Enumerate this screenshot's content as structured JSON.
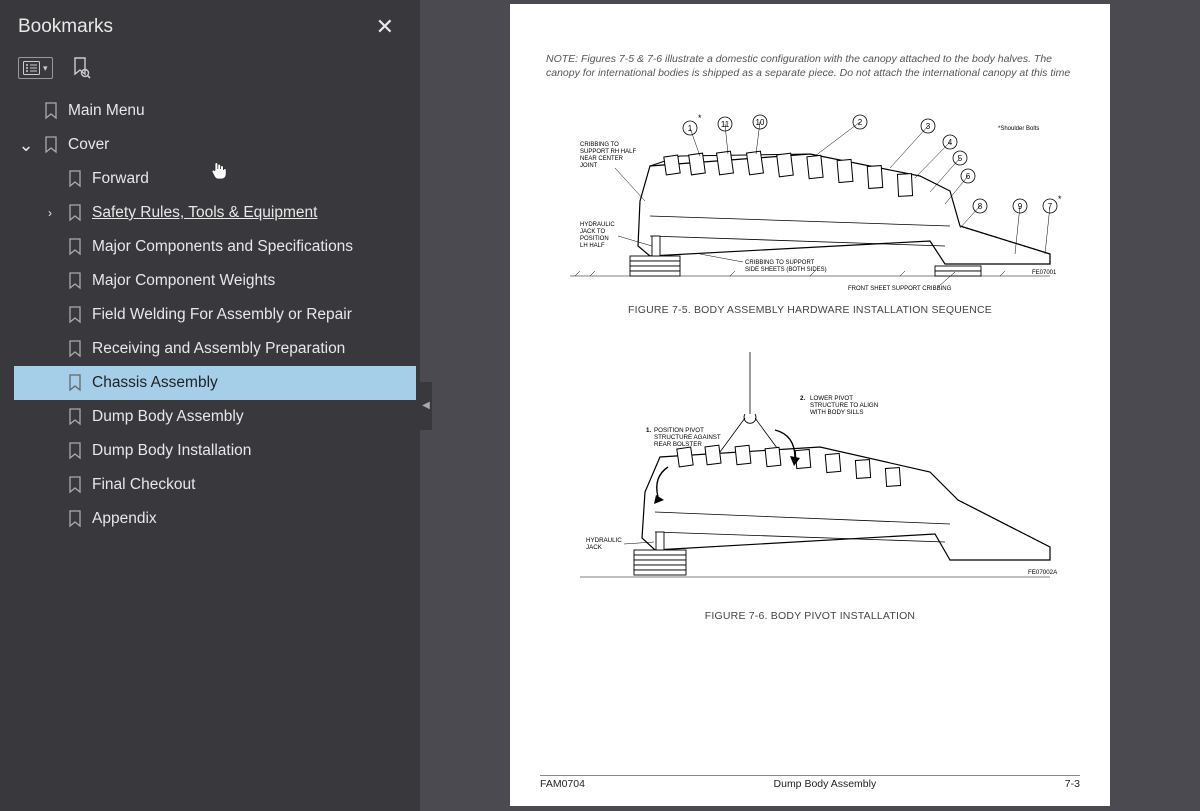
{
  "sidebar": {
    "title": "Bookmarks",
    "bookmarks": [
      {
        "label": "Main Menu",
        "depth": 0,
        "expandable": false
      },
      {
        "label": "Cover",
        "depth": 0,
        "expandable": true,
        "expanded": true
      },
      {
        "label": "Forward",
        "depth": 1,
        "expandable": false
      },
      {
        "label": "Safety Rules, Tools & Equipment",
        "depth": 1,
        "expandable": true,
        "expanded": false,
        "underlined": true
      },
      {
        "label": "Major Components and Specifications",
        "depth": 1,
        "expandable": false
      },
      {
        "label": "Major Component Weights",
        "depth": 1,
        "expandable": false
      },
      {
        "label": "Field Welding For Assembly or Repair",
        "depth": 1,
        "expandable": false
      },
      {
        "label": "Receiving and Assembly Preparation",
        "depth": 1,
        "expandable": false
      },
      {
        "label": "Chassis Assembly",
        "depth": 1,
        "expandable": false,
        "selected": true
      },
      {
        "label": "Dump Body Assembly",
        "depth": 1,
        "expandable": false
      },
      {
        "label": "Dump Body Installation",
        "depth": 1,
        "expandable": false
      },
      {
        "label": "Final Checkout",
        "depth": 1,
        "expandable": false
      },
      {
        "label": "Appendix",
        "depth": 1,
        "expandable": false
      }
    ]
  },
  "page": {
    "note_text": "NOTE: Figures 7-5 & 7-6 illustrate a domestic configuration with the canopy attached to the body halves. The canopy for international bodies is shipped as a separate piece. Do not attach the international canopy at this time",
    "figure1": {
      "caption": "FIGURE 7-5. BODY ASSEMBLY HARDWARE INSTALLATION SEQUENCE",
      "callouts": [
        "1",
        "11",
        "10",
        "2",
        "3",
        "4",
        "5",
        "6",
        "8",
        "9",
        "7"
      ],
      "labels": {
        "shoulder": "*Shoulder Bolts",
        "cribbing_rh": "CRIBBING TO SUPPORT RH HALF NEAR CENTER JOINT",
        "hyd_jack_lh": "HYDRAULIC JACK TO POSITION LH HALF",
        "cribbing_side": "CRIBBING TO SUPPORT SIDE SHEETS (BOTH SIDES)",
        "front_support": "FRONT SHEET SUPPORT CRIBBING",
        "refnum": "FE07001"
      }
    },
    "figure2": {
      "caption": "FIGURE 7-6. BODY PIVOT INSTALLATION",
      "labels": {
        "step1_num": "1.",
        "step1": "POSITION PIVOT STRUCTURE AGAINST REAR BOLSTER",
        "step2_num": "2.",
        "step2": "LOWER PIVOT STRUCTURE TO ALIGN WITH BODY SILLS",
        "hyd_jack": "HYDRAULIC JACK",
        "refnum": "FE07002A"
      }
    },
    "footer": {
      "left": "FAM0704",
      "center": "Dump Body Assembly",
      "right": "7-3"
    }
  },
  "colors": {
    "sidebar_bg": "#38383d",
    "content_bg": "#4a4a50",
    "selected_bg": "#a5cfe8",
    "text_light": "#e8e8e8"
  }
}
